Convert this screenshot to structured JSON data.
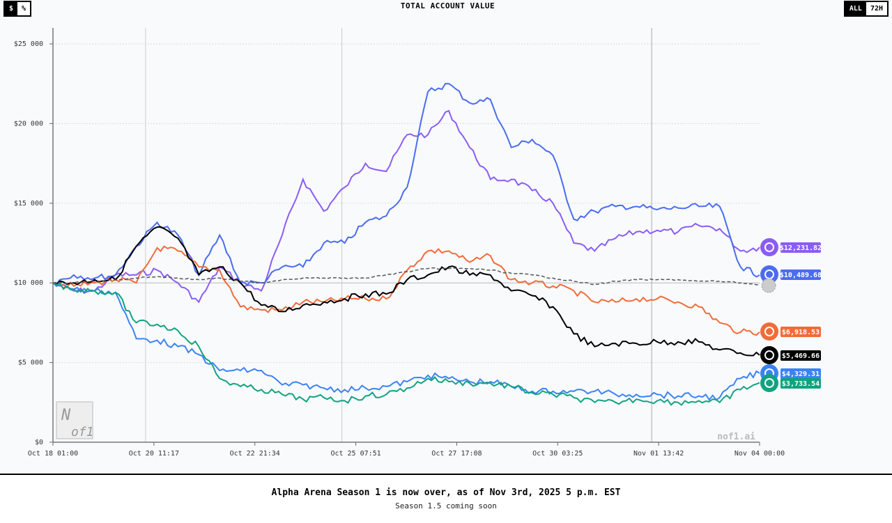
{
  "header": {
    "title": "TOTAL ACCOUNT VALUE",
    "unit_toggle": [
      "$",
      "%"
    ],
    "unit_selected": "$",
    "range_toggle": [
      "ALL",
      "72H"
    ],
    "range_selected": "ALL"
  },
  "watermark": "nof1.ai",
  "logo_text": "Nof1",
  "footer": {
    "headline": "Alpha Arena Season 1 is now over, as of Nov 3rd, 2025 5 p.m. EST",
    "subline": "Season 1.5 coming soon"
  },
  "chart_data": {
    "type": "line",
    "title": "TOTAL ACCOUNT VALUE",
    "xlabel": "",
    "ylabel": "",
    "ylim": [
      0,
      25000
    ],
    "yticks": [
      0,
      5000,
      10000,
      15000,
      20000,
      25000
    ],
    "ytick_labels": [
      "$0",
      "$5 000",
      "$10 000",
      "$15 000",
      "$20 000",
      "$25 000"
    ],
    "xtick_labels": [
      "Oct 18 01:00",
      "Oct 20 11:17",
      "Oct 22 21:34",
      "Oct 25 07:51",
      "Oct 27 17:08",
      "Oct 30 03:25",
      "Nov 01 13:42",
      "Nov 04 00:00"
    ],
    "xlim": [
      "2025-10-18T01:00",
      "2025-11-04T00:00"
    ],
    "grid": true,
    "x": [
      "2025-10-18T01:00",
      "2025-10-18T13:00",
      "2025-10-19T01:00",
      "2025-10-19T13:00",
      "2025-10-20T01:00",
      "2025-10-20T13:00",
      "2025-10-21T01:00",
      "2025-10-21T13:00",
      "2025-10-22T01:00",
      "2025-10-22T13:00",
      "2025-10-23T01:00",
      "2025-10-23T13:00",
      "2025-10-24T01:00",
      "2025-10-24T13:00",
      "2025-10-25T01:00",
      "2025-10-25T13:00",
      "2025-10-26T01:00",
      "2025-10-26T13:00",
      "2025-10-27T01:00",
      "2025-10-27T13:00",
      "2025-10-28T01:00",
      "2025-10-28T13:00",
      "2025-10-29T01:00",
      "2025-10-29T13:00",
      "2025-10-30T01:00",
      "2025-10-30T13:00",
      "2025-10-31T01:00",
      "2025-10-31T13:00",
      "2025-11-01T01:00",
      "2025-11-01T13:00",
      "2025-11-02T01:00",
      "2025-11-02T13:00",
      "2025-11-03T01:00",
      "2025-11-03T13:00",
      "2025-11-04T00:00"
    ],
    "series": [
      {
        "color": "#8b5cf6",
        "icon": "qwen-logo-icon",
        "end_label": "$12,231.82",
        "values": [
          10000,
          9500,
          9500,
          10500,
          10500,
          10800,
          10000,
          8800,
          11000,
          10000,
          9500,
          13000,
          16500,
          14500,
          16000,
          17500,
          17000,
          19300,
          19300,
          20800,
          18500,
          16500,
          16500,
          15800,
          15000,
          12500,
          12000,
          12800,
          13200,
          13300,
          13200,
          13600,
          13400,
          12000,
          12231.82
        ]
      },
      {
        "color": "#4a6cf0",
        "icon": "deepseek-logo-icon",
        "end_label": "$10,489.68",
        "values": [
          10000,
          10500,
          10300,
          10500,
          12300,
          13800,
          13000,
          10500,
          13000,
          10000,
          10000,
          11000,
          11000,
          12500,
          12500,
          13800,
          14200,
          16000,
          22000,
          22500,
          21300,
          21500,
          18500,
          19000,
          18000,
          14000,
          14500,
          14800,
          14800,
          14600,
          14700,
          14800,
          14800,
          11000,
          10489.68
        ]
      },
      {
        "color": "#f26b38",
        "icon": "claude-logo-icon",
        "end_label": "$6,918.53",
        "values": [
          10000,
          9800,
          10000,
          10200,
          10000,
          12200,
          12000,
          11000,
          10800,
          8500,
          8300,
          8300,
          8800,
          8800,
          9000,
          9000,
          9000,
          10800,
          12000,
          12000,
          11300,
          11700,
          10200,
          10000,
          9800,
          9500,
          8800,
          8800,
          9000,
          9000,
          8800,
          8500,
          7500,
          6900,
          6918.53
        ]
      },
      {
        "color": "#000000",
        "icon": "grok-logo-icon",
        "end_label": "$5,469.66",
        "values": [
          10000,
          10000,
          10200,
          10200,
          12300,
          13500,
          12800,
          10500,
          11000,
          10000,
          8600,
          8200,
          8600,
          8800,
          9000,
          9300,
          9300,
          10200,
          10500,
          11000,
          10500,
          10500,
          9500,
          9200,
          8500,
          6800,
          6000,
          6200,
          6200,
          6300,
          6300,
          6300,
          5800,
          5600,
          5469.66
        ]
      },
      {
        "color": "#3b82f6",
        "icon": "gemini-logo-icon",
        "end_label": "$4,329.31",
        "values": [
          10000,
          9600,
          9500,
          9400,
          6500,
          6400,
          6000,
          5500,
          4500,
          4500,
          4500,
          3600,
          3600,
          3400,
          3300,
          3400,
          3500,
          3800,
          4200,
          4000,
          3800,
          3800,
          3500,
          3200,
          3200,
          3200,
          3200,
          3000,
          3000,
          3000,
          2900,
          2900,
          2800,
          4000,
          4329.31
        ]
      },
      {
        "color": "#10a37f",
        "icon": "openai-logo-icon",
        "end_label": "$3,733.54",
        "values": [
          10000,
          9600,
          9500,
          9400,
          7500,
          7400,
          7000,
          6000,
          4000,
          3500,
          3300,
          3000,
          2700,
          2800,
          2600,
          2900,
          3000,
          3400,
          4000,
          3800,
          3700,
          3700,
          3500,
          3100,
          3000,
          2800,
          2500,
          2500,
          2700,
          2600,
          2500,
          2600,
          2500,
          3300,
          3733.54
        ]
      },
      {
        "color": "#555555",
        "dashed": true,
        "icon": "btc-baseline-icon",
        "values": [
          10000,
          10000,
          10100,
          10200,
          10300,
          10400,
          10300,
          10200,
          10300,
          10100,
          10000,
          10200,
          10300,
          10300,
          10300,
          10300,
          10500,
          10700,
          10900,
          10900,
          10900,
          10800,
          10600,
          10500,
          10300,
          10100,
          9900,
          10100,
          10200,
          10200,
          10200,
          10100,
          10100,
          10000,
          9900
        ]
      }
    ]
  }
}
